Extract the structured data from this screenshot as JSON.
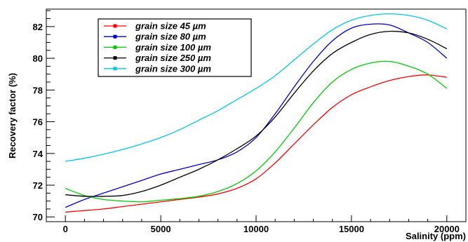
{
  "chart_data": {
    "type": "line",
    "title": "",
    "xlabel": "Salinity (ppm)",
    "ylabel": "Recovery factor (%)",
    "xlim": [
      -1000,
      21000
    ],
    "ylim": [
      69.7,
      83.1
    ],
    "x_ticks": [
      0,
      5000,
      10000,
      15000,
      20000
    ],
    "y_ticks": [
      70,
      72,
      74,
      76,
      78,
      80,
      82
    ],
    "grid": false,
    "legend_position": "top-left",
    "x": [
      0,
      1000,
      2000,
      3000,
      4000,
      5000,
      6000,
      7000,
      8000,
      9000,
      10000,
      11000,
      12000,
      13000,
      14000,
      15000,
      16000,
      17000,
      18000,
      19000,
      20000
    ],
    "series": [
      {
        "name": "grain size 45 µm",
        "color": "#ff0000",
        "values": [
          70.3,
          70.4,
          70.5,
          70.65,
          70.8,
          70.95,
          71.1,
          71.25,
          71.45,
          71.8,
          72.4,
          73.4,
          74.6,
          75.8,
          76.9,
          77.7,
          78.2,
          78.6,
          78.85,
          78.95,
          78.8
        ]
      },
      {
        "name": "grain size 80 µm",
        "color": "#0000cc",
        "values": [
          70.6,
          71.1,
          71.5,
          71.9,
          72.3,
          72.7,
          73.0,
          73.3,
          73.6,
          74.1,
          75.0,
          76.5,
          78.2,
          79.8,
          81.1,
          81.9,
          82.15,
          82.1,
          81.6,
          81.0,
          80.0
        ]
      },
      {
        "name": "grain size 100 µm",
        "color": "#00cc00",
        "values": [
          71.8,
          71.35,
          71.1,
          71.0,
          70.95,
          71.05,
          71.15,
          71.3,
          71.6,
          72.1,
          72.9,
          74.1,
          75.6,
          77.2,
          78.5,
          79.3,
          79.7,
          79.8,
          79.5,
          79.0,
          78.1
        ]
      },
      {
        "name": "grain size 250 µm",
        "color": "#000000",
        "values": [
          71.4,
          71.3,
          71.3,
          71.35,
          71.6,
          72.0,
          72.5,
          73.0,
          73.6,
          74.3,
          75.1,
          76.3,
          77.8,
          79.2,
          80.3,
          81.0,
          81.5,
          81.7,
          81.6,
          81.2,
          80.6
        ]
      },
      {
        "name": "grain size 300 µm",
        "color": "#00c8e6",
        "values": [
          73.5,
          73.7,
          73.95,
          74.25,
          74.6,
          75.0,
          75.5,
          76.1,
          76.7,
          77.4,
          78.1,
          78.9,
          79.9,
          80.9,
          81.8,
          82.4,
          82.7,
          82.8,
          82.7,
          82.4,
          81.85
        ]
      }
    ]
  }
}
